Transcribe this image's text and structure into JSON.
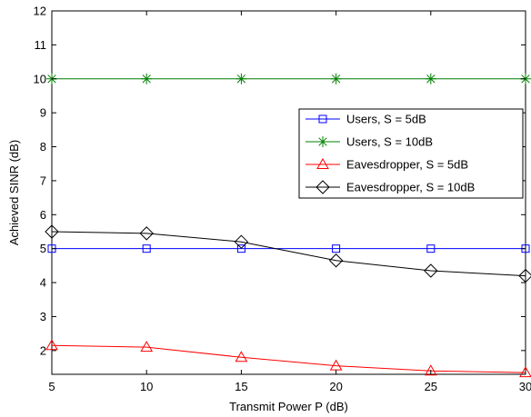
{
  "chart_data": {
    "type": "line",
    "title": "",
    "xlabel": "Transmit Power P (dB)",
    "ylabel": "Achieved SINR (dB)",
    "xlim": [
      5,
      30
    ],
    "ylim": [
      1.3,
      12
    ],
    "x_ticks": [
      5,
      10,
      15,
      20,
      25,
      30
    ],
    "y_ticks": [
      2,
      3,
      4,
      5,
      6,
      7,
      8,
      9,
      10,
      11,
      12
    ],
    "grid": false,
    "legend_position": "right",
    "x": [
      5,
      10,
      15,
      20,
      25,
      30
    ],
    "series": [
      {
        "name": "Users, S = 5dB",
        "color": "#0000ff",
        "marker": "square",
        "values": [
          5.0,
          5.0,
          5.0,
          5.0,
          5.0,
          5.0
        ]
      },
      {
        "name": "Users, S = 10dB",
        "color": "#008000",
        "marker": "asterisk",
        "values": [
          10.0,
          10.0,
          10.0,
          10.0,
          10.0,
          10.0
        ]
      },
      {
        "name": "Eavesdropper, S = 5dB",
        "color": "#ff0000",
        "marker": "triangle",
        "values": [
          2.15,
          2.1,
          1.8,
          1.55,
          1.4,
          1.35
        ]
      },
      {
        "name": "Eavesdropper, S = 10dB",
        "color": "#000000",
        "marker": "diamond",
        "values": [
          5.5,
          5.45,
          5.2,
          4.65,
          4.35,
          4.2
        ]
      }
    ]
  }
}
